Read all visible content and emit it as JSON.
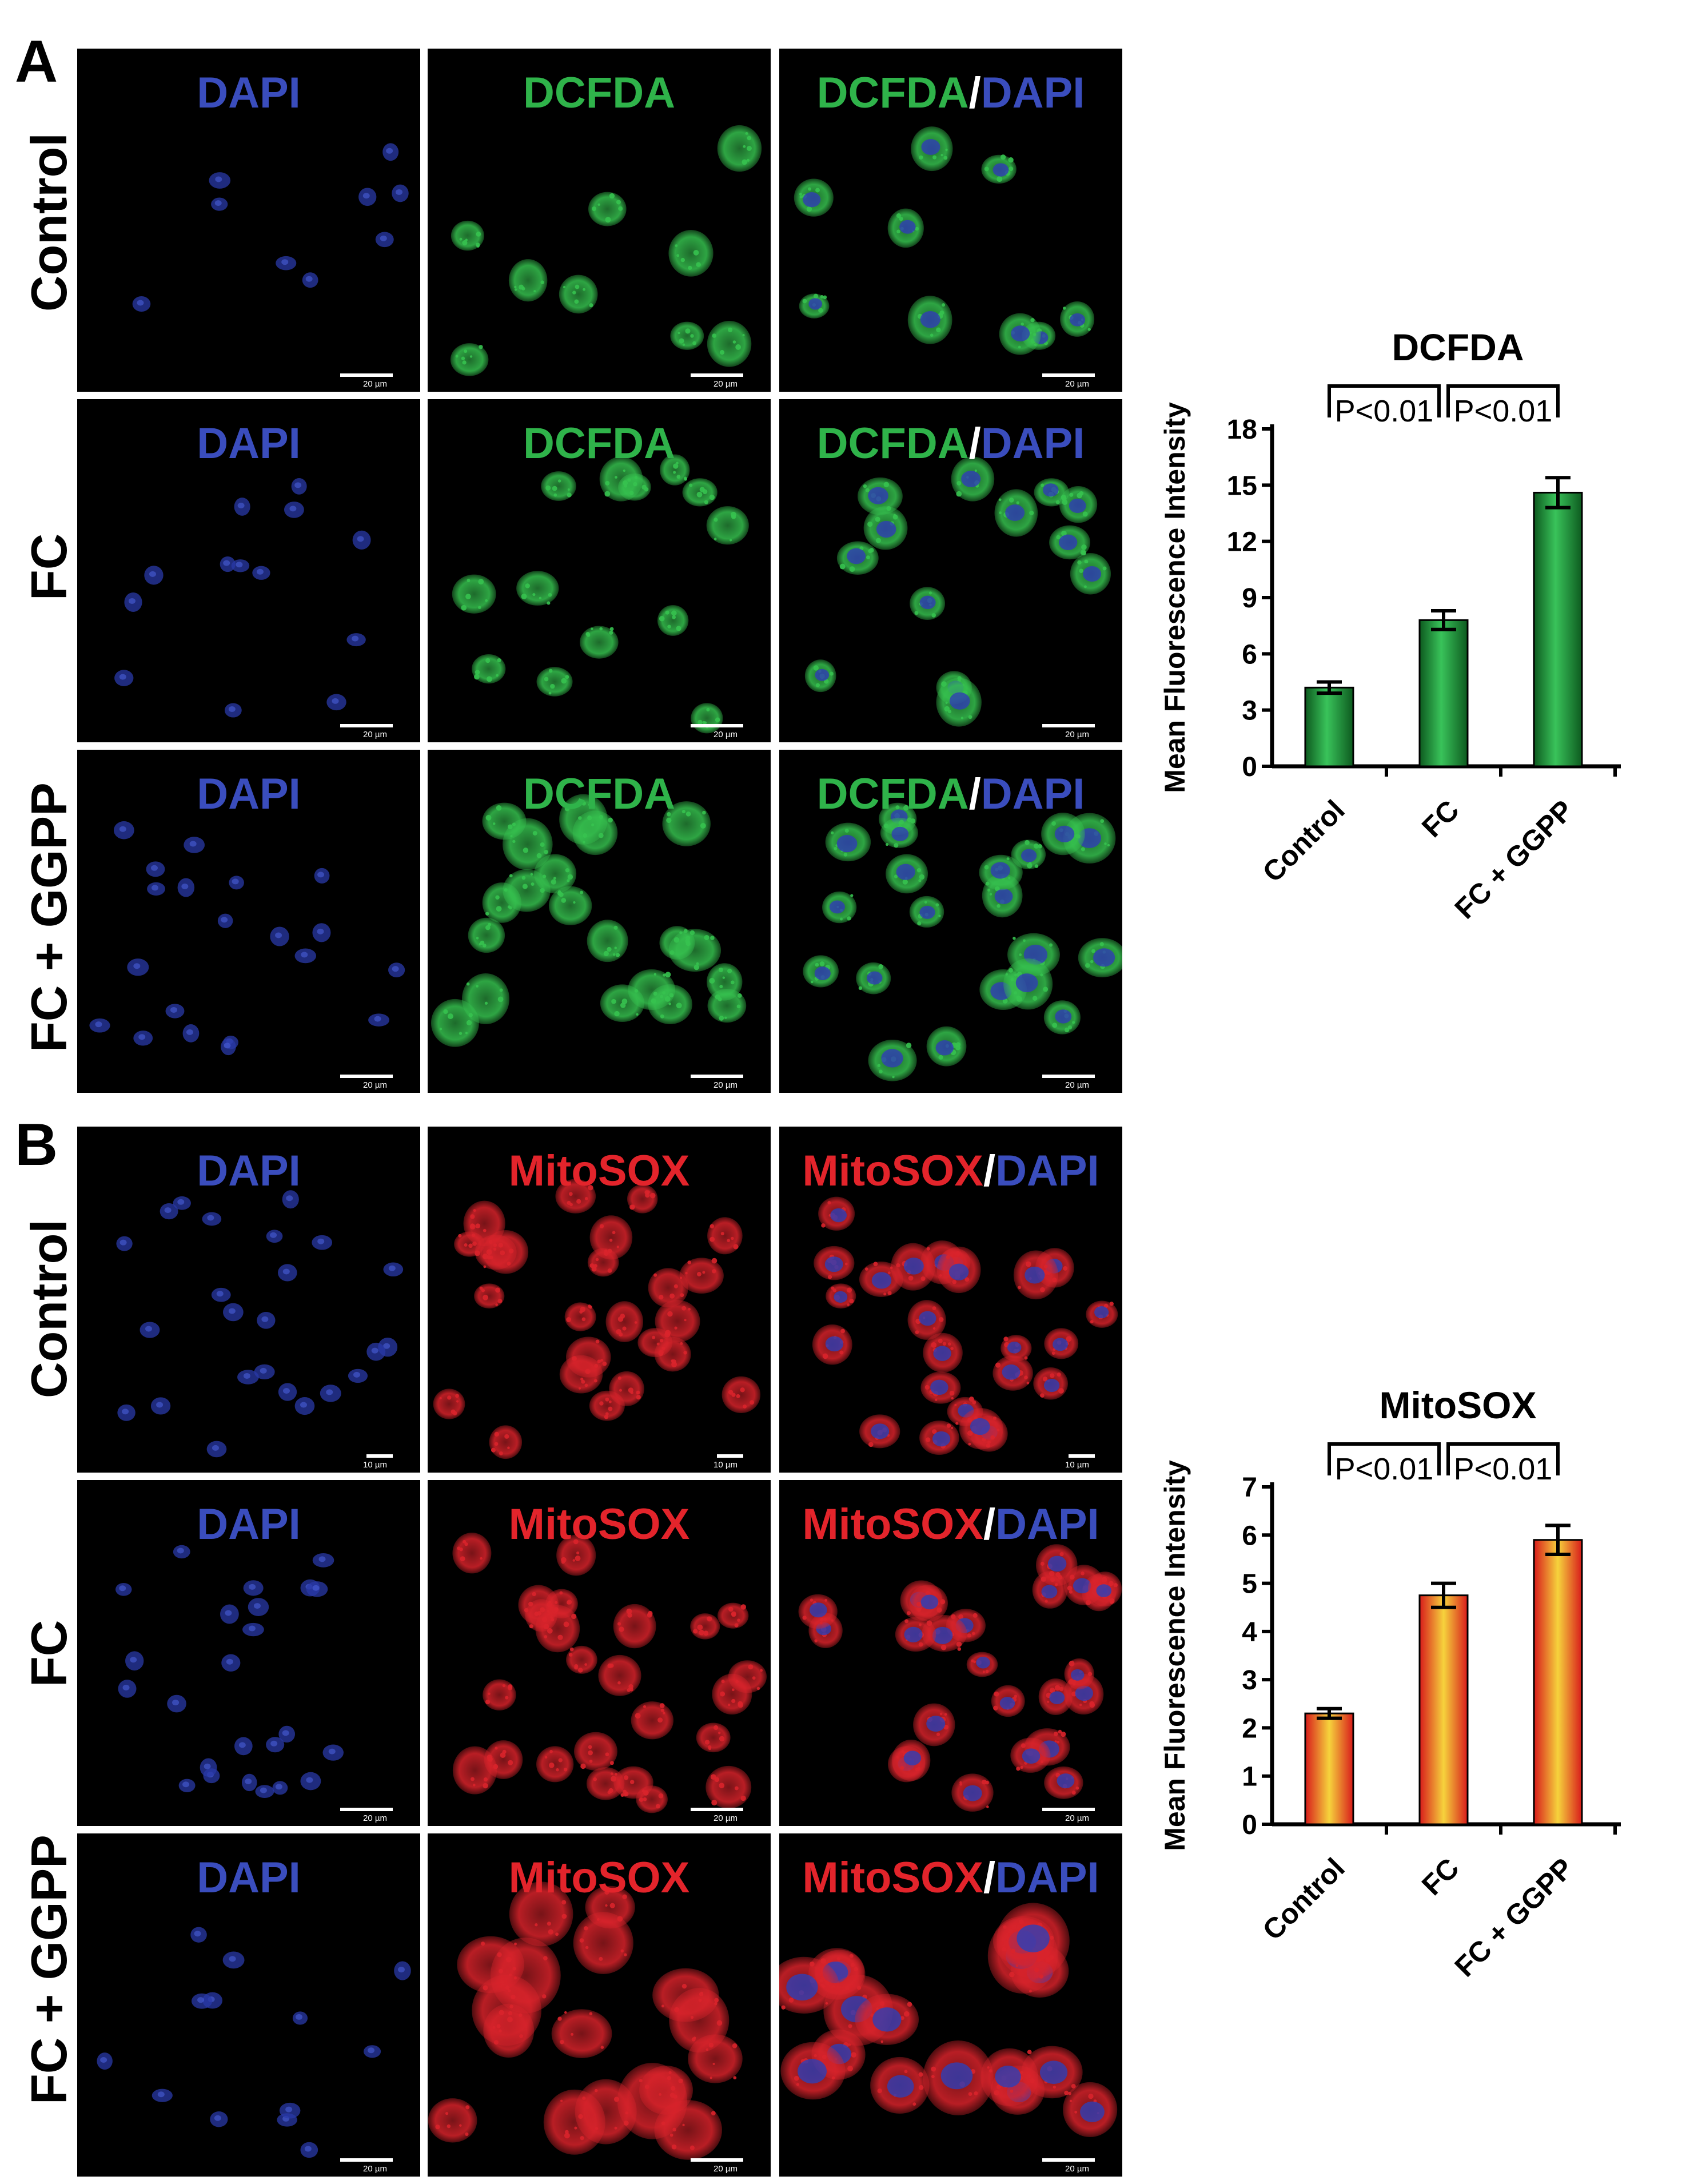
{
  "colors": {
    "dapi": "#3a4dbd",
    "dcfda": "#2fb34a",
    "mitosox": "#e3242b",
    "slash": "#ffffff",
    "dcfda_bar_dark": "#0d5a1f",
    "dcfda_bar_light": "#39c35a",
    "mitosox_bar_red": "#d81b1b",
    "mitosox_bar_yellow": "#f6d33c"
  },
  "panel_a": {
    "letter": "A",
    "rows": [
      {
        "label": "Control",
        "scale": "20 µm"
      },
      {
        "label": "FC",
        "scale": "20 µm"
      },
      {
        "label": "FC + GGPP",
        "scale": "20 µm"
      }
    ],
    "columns": {
      "c1": {
        "text": "DAPI"
      },
      "c2": {
        "text": "DCFDA"
      },
      "c3": {
        "a": "DCFDA",
        "slash": "/",
        "b": "DAPI"
      }
    }
  },
  "panel_b": {
    "letter": "B",
    "rows": [
      {
        "label": "Control",
        "scale": "10 µm"
      },
      {
        "label": "FC",
        "scale": "20 µm"
      },
      {
        "label": "FC + GGPP",
        "scale": "20 µm"
      }
    ],
    "columns": {
      "c1": {
        "text": "DAPI"
      },
      "c2": {
        "text": "MitoSOX"
      },
      "c3": {
        "a": "MitoSOX",
        "slash": "/",
        "b": "DAPI"
      }
    }
  },
  "chart_data": [
    {
      "type": "bar",
      "title": "DCFDA",
      "ylabel": "Mean Fluorescence Intensity",
      "xlabel": "",
      "categories": [
        "Control",
        "FC",
        "FC + GGPP"
      ],
      "values": [
        4.2,
        7.8,
        14.6
      ],
      "errors": [
        0.3,
        0.5,
        0.8
      ],
      "ylim": [
        0,
        18
      ],
      "yticks": [
        0,
        3,
        6,
        9,
        12,
        15,
        18
      ],
      "significance": [
        {
          "from": 0,
          "to": 1,
          "label": "P<0.01"
        },
        {
          "from": 1,
          "to": 2,
          "label": "P<0.01"
        }
      ],
      "grid": false,
      "bar_style": "green-gradient"
    },
    {
      "type": "bar",
      "title": "MitoSOX",
      "ylabel": "Mean Fluorescence Intensity",
      "xlabel": "",
      "categories": [
        "Control",
        "FC",
        "FC + GGPP"
      ],
      "values": [
        2.3,
        4.75,
        5.9
      ],
      "errors": [
        0.1,
        0.25,
        0.3
      ],
      "ylim": [
        0,
        7
      ],
      "yticks": [
        0,
        1,
        2,
        3,
        4,
        5,
        6,
        7
      ],
      "significance": [
        {
          "from": 0,
          "to": 1,
          "label": "P<0.01"
        },
        {
          "from": 1,
          "to": 2,
          "label": "P<0.01"
        }
      ],
      "grid": false,
      "bar_style": "red-yellow-gradient"
    }
  ]
}
